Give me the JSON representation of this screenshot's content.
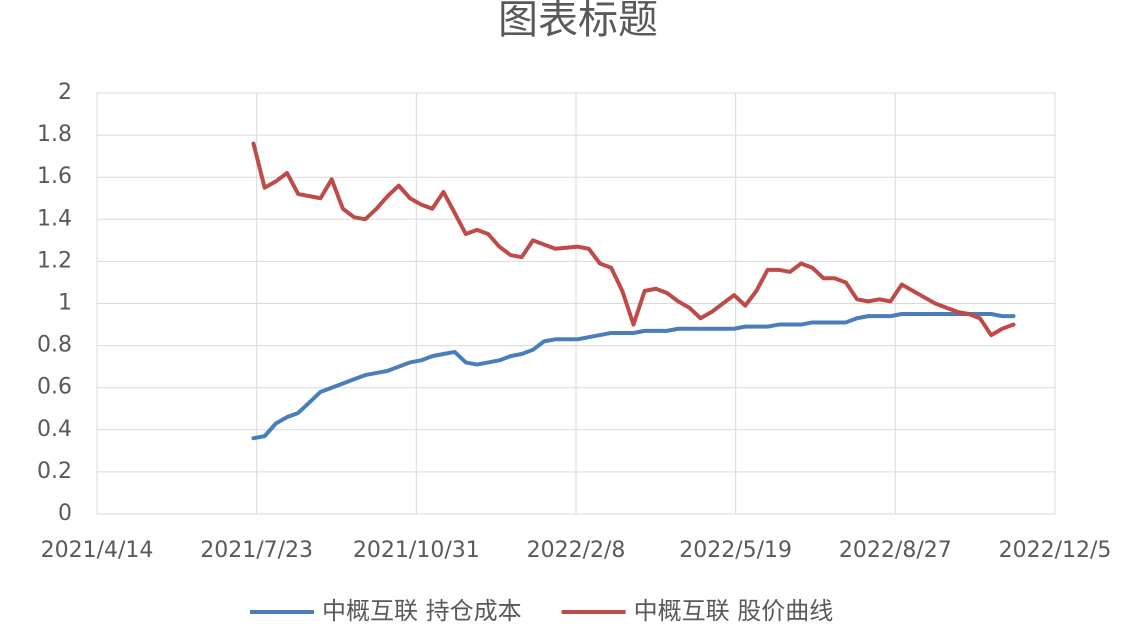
{
  "chart_data": {
    "type": "line",
    "title": "图表标题",
    "x": [
      "2021/7/21",
      "2021/7/28",
      "2021/8/4",
      "2021/8/11",
      "2021/8/18",
      "2021/8/25",
      "2021/9/1",
      "2021/9/8",
      "2021/9/15",
      "2021/9/22",
      "2021/9/29",
      "2021/10/6",
      "2021/10/13",
      "2021/10/20",
      "2021/10/27",
      "2021/11/3",
      "2021/11/10",
      "2021/11/17",
      "2021/11/24",
      "2021/12/1",
      "2021/12/8",
      "2021/12/15",
      "2021/12/22",
      "2021/12/29",
      "2022/1/5",
      "2022/1/12",
      "2022/1/19",
      "2022/1/26",
      "2022/2/2",
      "2022/2/9",
      "2022/2/16",
      "2022/2/23",
      "2022/3/2",
      "2022/3/9",
      "2022/3/16",
      "2022/3/23",
      "2022/3/30",
      "2022/4/6",
      "2022/4/13",
      "2022/4/20",
      "2022/4/27",
      "2022/5/4",
      "2022/5/11",
      "2022/5/18",
      "2022/5/25",
      "2022/6/1",
      "2022/6/8",
      "2022/6/15",
      "2022/6/22",
      "2022/6/29",
      "2022/7/6",
      "2022/7/13",
      "2022/7/20",
      "2022/7/27",
      "2022/8/3",
      "2022/8/10",
      "2022/8/17",
      "2022/8/24",
      "2022/8/31",
      "2022/9/7",
      "2022/9/14",
      "2022/9/21",
      "2022/9/28",
      "2022/10/5",
      "2022/10/12",
      "2022/10/19",
      "2022/10/26",
      "2022/11/2",
      "2022/11/9"
    ],
    "series": [
      {
        "name": "中概互联 持仓成本",
        "color": "#4a7ebb",
        "values": [
          0.36,
          0.37,
          0.43,
          0.46,
          0.48,
          0.53,
          0.58,
          0.6,
          0.62,
          0.64,
          0.66,
          0.67,
          0.68,
          0.7,
          0.72,
          0.73,
          0.75,
          0.76,
          0.77,
          0.72,
          0.71,
          0.72,
          0.73,
          0.75,
          0.76,
          0.78,
          0.82,
          0.83,
          0.83,
          0.83,
          0.84,
          0.85,
          0.86,
          0.86,
          0.86,
          0.87,
          0.87,
          0.87,
          0.88,
          0.88,
          0.88,
          0.88,
          0.88,
          0.88,
          0.89,
          0.89,
          0.89,
          0.9,
          0.9,
          0.9,
          0.91,
          0.91,
          0.91,
          0.91,
          0.93,
          0.94,
          0.94,
          0.94,
          0.95,
          0.95,
          0.95,
          0.95,
          0.95,
          0.95,
          0.95,
          0.95,
          0.95,
          0.94,
          0.94
        ]
      },
      {
        "name": "中概互联 股价曲线",
        "color": "#be4b48",
        "values": [
          1.76,
          1.55,
          1.58,
          1.62,
          1.52,
          1.51,
          1.5,
          1.59,
          1.45,
          1.41,
          1.4,
          1.45,
          1.51,
          1.56,
          1.5,
          1.47,
          1.45,
          1.53,
          1.43,
          1.33,
          1.35,
          1.33,
          1.27,
          1.23,
          1.22,
          1.3,
          1.28,
          1.26,
          1.265,
          1.27,
          1.26,
          1.19,
          1.17,
          1.06,
          0.9,
          1.06,
          1.07,
          1.05,
          1.01,
          0.98,
          0.93,
          0.96,
          1.0,
          1.04,
          0.99,
          1.06,
          1.16,
          1.16,
          1.15,
          1.19,
          1.17,
          1.12,
          1.12,
          1.1,
          1.02,
          1.01,
          1.02,
          1.01,
          1.09,
          1.06,
          1.03,
          1.0,
          0.98,
          0.96,
          0.95,
          0.93,
          0.85,
          0.88,
          0.9
        ]
      }
    ],
    "xlim": [
      "2021/4/14",
      "2022/12/5"
    ],
    "xticks": [
      "2021/4/14",
      "2021/7/23",
      "2021/10/31",
      "2022/2/8",
      "2022/5/19",
      "2022/8/27",
      "2022/12/5"
    ],
    "ylim": [
      0,
      2
    ],
    "yticks": [
      0,
      0.2,
      0.4,
      0.6,
      0.8,
      1,
      1.2,
      1.4,
      1.6,
      1.8,
      2
    ],
    "grid": true,
    "legend": "bottom"
  }
}
